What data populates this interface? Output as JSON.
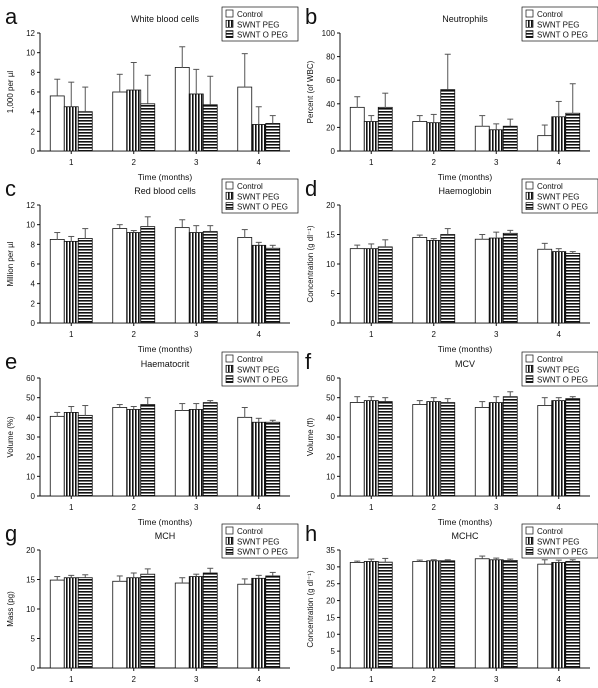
{
  "legend_labels": [
    "Control",
    "SWNT PEG",
    "SWNT O PEG"
  ],
  "chart_data": [
    {
      "panel": "a",
      "type": "bar",
      "title": "White blood cells",
      "xlabel": "Time (months)",
      "ylabel": "1,000 per µl",
      "ylim": [
        0,
        12
      ],
      "yticks": [
        0,
        2,
        4,
        6,
        8,
        10,
        12
      ],
      "categories": [
        "1",
        "2",
        "3",
        "4"
      ],
      "legend_position": "top-right",
      "series": [
        {
          "name": "Control",
          "values": [
            5.6,
            6.0,
            8.5,
            6.5
          ],
          "errors": [
            1.7,
            1.8,
            2.1,
            3.4
          ]
        },
        {
          "name": "SWNT PEG",
          "values": [
            4.5,
            6.2,
            5.8,
            2.7
          ],
          "errors": [
            2.5,
            2.8,
            2.5,
            1.8
          ]
        },
        {
          "name": "SWNT O PEG",
          "values": [
            4.0,
            4.8,
            4.7,
            2.8
          ],
          "errors": [
            2.5,
            2.9,
            2.9,
            0.8
          ]
        }
      ]
    },
    {
      "panel": "b",
      "type": "bar",
      "title": "Neutrophils",
      "xlabel": "Time (months)",
      "ylabel": "Percent (of WBC)",
      "ylim": [
        0,
        100
      ],
      "yticks": [
        0,
        20,
        40,
        60,
        80,
        100
      ],
      "categories": [
        "1",
        "2",
        "3",
        "4"
      ],
      "legend_position": "top-right",
      "series": [
        {
          "name": "Control",
          "values": [
            37,
            25,
            21,
            13
          ],
          "errors": [
            9,
            5,
            9,
            9
          ]
        },
        {
          "name": "SWNT PEG",
          "values": [
            25,
            24,
            18,
            29
          ],
          "errors": [
            5,
            7,
            5,
            13
          ]
        },
        {
          "name": "SWNT O PEG",
          "values": [
            37,
            52,
            21,
            32
          ],
          "errors": [
            12,
            30,
            6,
            25
          ]
        }
      ]
    },
    {
      "panel": "c",
      "type": "bar",
      "title": "Red blood cells",
      "xlabel": "Time (months)",
      "ylabel": "Million per µl",
      "ylim": [
        0,
        12
      ],
      "yticks": [
        0,
        2,
        4,
        6,
        8,
        10,
        12
      ],
      "categories": [
        "1",
        "2",
        "3",
        "4"
      ],
      "legend_position": "top-right",
      "series": [
        {
          "name": "Control",
          "values": [
            8.5,
            9.6,
            9.7,
            8.7
          ],
          "errors": [
            0.7,
            0.4,
            0.8,
            0.8
          ]
        },
        {
          "name": "SWNT PEG",
          "values": [
            8.3,
            9.2,
            9.2,
            7.9
          ],
          "errors": [
            0.5,
            0.2,
            0.7,
            0.3
          ]
        },
        {
          "name": "SWNT O PEG",
          "values": [
            8.6,
            9.8,
            9.3,
            7.6
          ],
          "errors": [
            1.0,
            1.0,
            0.6,
            0.3
          ]
        }
      ]
    },
    {
      "panel": "d",
      "type": "bar",
      "title": "Haemoglobin",
      "xlabel": "Time (months)",
      "ylabel": "Concentration (g dl⁻¹)",
      "ylim": [
        0,
        20
      ],
      "yticks": [
        0,
        5,
        10,
        15,
        20
      ],
      "categories": [
        "1",
        "2",
        "3",
        "4"
      ],
      "legend_position": "top-right",
      "series": [
        {
          "name": "Control",
          "values": [
            12.6,
            14.5,
            14.2,
            12.5
          ],
          "errors": [
            0.6,
            0.4,
            0.8,
            1.0
          ]
        },
        {
          "name": "SWNT PEG",
          "values": [
            12.6,
            14.0,
            14.4,
            12.1
          ],
          "errors": [
            0.8,
            0.3,
            1.0,
            0.5
          ]
        },
        {
          "name": "SWNT O PEG",
          "values": [
            12.9,
            15.0,
            15.2,
            11.8
          ],
          "errors": [
            1.2,
            1.0,
            0.5,
            0.3
          ]
        }
      ]
    },
    {
      "panel": "e",
      "type": "bar",
      "title": "Haematocrit",
      "xlabel": "Time (months)",
      "ylabel": "Volume (%)",
      "ylim": [
        0,
        60
      ],
      "yticks": [
        0,
        10,
        20,
        30,
        40,
        50,
        60
      ],
      "categories": [
        "1",
        "2",
        "3",
        "4"
      ],
      "legend_position": "top-right",
      "series": [
        {
          "name": "Control",
          "values": [
            40.5,
            45,
            43.5,
            40
          ],
          "errors": [
            2,
            1.5,
            3.5,
            5
          ]
        },
        {
          "name": "SWNT PEG",
          "values": [
            42.5,
            44,
            44,
            37.5
          ],
          "errors": [
            3,
            1.5,
            3,
            2
          ]
        },
        {
          "name": "SWNT O PEG",
          "values": [
            41,
            46.5,
            47.5,
            37.5
          ],
          "errors": [
            5,
            3.5,
            1,
            1
          ]
        }
      ]
    },
    {
      "panel": "f",
      "type": "bar",
      "title": "MCV",
      "xlabel": "Time (months)",
      "ylabel": "Volume (fl)",
      "ylim": [
        0,
        60
      ],
      "yticks": [
        0,
        10,
        20,
        30,
        40,
        50,
        60
      ],
      "categories": [
        "1",
        "2",
        "3",
        "4"
      ],
      "legend_position": "top-right",
      "series": [
        {
          "name": "Control",
          "values": [
            47.5,
            46.5,
            45,
            46
          ],
          "errors": [
            3,
            2,
            3,
            4
          ]
        },
        {
          "name": "SWNT PEG",
          "values": [
            48.5,
            48,
            47.5,
            48.5
          ],
          "errors": [
            2,
            2,
            3,
            1.5
          ]
        },
        {
          "name": "SWNT O PEG",
          "values": [
            48,
            47.5,
            50.5,
            49.5
          ],
          "errors": [
            2,
            2,
            2.5,
            1
          ]
        }
      ]
    },
    {
      "panel": "g",
      "type": "bar",
      "title": "MCH",
      "xlabel": "Time (months)",
      "ylabel": "Mass (pg)",
      "ylim": [
        0,
        20
      ],
      "yticks": [
        0,
        5,
        10,
        15,
        20
      ],
      "categories": [
        "1",
        "2",
        "3",
        "4"
      ],
      "legend_position": "top-right",
      "series": [
        {
          "name": "Control",
          "values": [
            14.9,
            14.7,
            14.4,
            14.2
          ],
          "errors": [
            0.6,
            0.9,
            0.9,
            0.9
          ]
        },
        {
          "name": "SWNT PEG",
          "values": [
            15.3,
            15.3,
            15.5,
            15.2
          ],
          "errors": [
            0.4,
            0.8,
            0.4,
            0.5
          ]
        },
        {
          "name": "SWNT O PEG",
          "values": [
            15.3,
            15.9,
            16.1,
            15.6
          ],
          "errors": [
            0.5,
            0.9,
            0.8,
            0.6
          ]
        }
      ]
    },
    {
      "panel": "h",
      "type": "bar",
      "title": "MCHC",
      "xlabel": "Time (months)",
      "ylabel": "Concentration (g dl⁻¹)",
      "ylim": [
        0,
        35
      ],
      "yticks": [
        0,
        5,
        10,
        15,
        20,
        25,
        30,
        35
      ],
      "categories": [
        "1",
        "2",
        "3",
        "4"
      ],
      "legend_position": "top-right",
      "series": [
        {
          "name": "Control",
          "values": [
            31.3,
            31.6,
            32.4,
            30.8
          ],
          "errors": [
            0.4,
            0.4,
            0.8,
            1.3
          ]
        },
        {
          "name": "SWNT PEG",
          "values": [
            31.6,
            31.8,
            32.1,
            31.3
          ],
          "errors": [
            0.7,
            0.3,
            0.5,
            0.7
          ]
        },
        {
          "name": "SWNT O PEG",
          "values": [
            31.4,
            31.8,
            31.9,
            31.6
          ],
          "errors": [
            1.1,
            0.3,
            0.4,
            0.5
          ]
        }
      ]
    }
  ]
}
